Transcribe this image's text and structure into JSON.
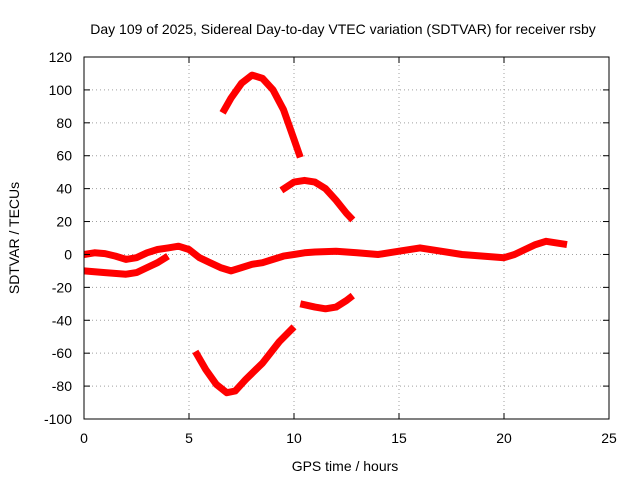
{
  "chart_data": {
    "type": "line",
    "title": "Day 109 of 2025, Sidereal Day-to-day VTEC variation (SDTVAR) for receiver rsby",
    "xlabel": "GPS time / hours",
    "ylabel": "SDTVAR / TECUs",
    "xlim": [
      0,
      25
    ],
    "ylim": [
      -100,
      120
    ],
    "xticks": [
      0,
      5,
      10,
      15,
      20,
      25
    ],
    "yticks": [
      -100,
      -80,
      -60,
      -40,
      -20,
      0,
      20,
      40,
      60,
      80,
      100,
      120
    ],
    "grid": true,
    "legend": "none",
    "color": "#ff0000",
    "series": [
      {
        "name": "main trace",
        "points": [
          [
            0,
            0
          ],
          [
            0.5,
            1
          ],
          [
            1,
            0.5
          ],
          [
            1.5,
            -1
          ],
          [
            2,
            -3
          ],
          [
            2.5,
            -2
          ],
          [
            3,
            1
          ],
          [
            3.5,
            3
          ],
          [
            4,
            4
          ],
          [
            4.5,
            5
          ],
          [
            5,
            3
          ],
          [
            5.5,
            -2
          ],
          [
            6,
            -5
          ],
          [
            6.5,
            -8
          ],
          [
            7,
            -10
          ],
          [
            7.5,
            -8
          ],
          [
            8,
            -6
          ],
          [
            8.5,
            -5
          ],
          [
            9,
            -3
          ],
          [
            9.5,
            -1
          ],
          [
            10,
            0
          ],
          [
            10.5,
            1
          ],
          [
            11,
            1.5
          ],
          [
            12,
            2
          ],
          [
            13,
            1
          ],
          [
            14,
            0
          ],
          [
            15,
            2
          ],
          [
            16,
            4
          ],
          [
            17,
            2
          ],
          [
            18,
            0
          ],
          [
            19,
            -1
          ],
          [
            20,
            -2
          ],
          [
            20.5,
            0
          ],
          [
            21,
            3
          ],
          [
            21.5,
            6
          ],
          [
            22,
            8
          ],
          [
            22.5,
            7
          ],
          [
            23,
            6
          ]
        ]
      },
      {
        "name": "early negative trace",
        "points": [
          [
            0,
            -10
          ],
          [
            1,
            -11
          ],
          [
            2,
            -12
          ],
          [
            2.5,
            -11
          ],
          [
            3,
            -8
          ],
          [
            3.5,
            -5
          ],
          [
            4,
            -1
          ]
        ]
      },
      {
        "name": "high arc",
        "points": [
          [
            6.6,
            86
          ],
          [
            7,
            95
          ],
          [
            7.5,
            104
          ],
          [
            8,
            109
          ],
          [
            8.5,
            107
          ],
          [
            9,
            100
          ],
          [
            9.5,
            88
          ],
          [
            10,
            70
          ],
          [
            10.3,
            59
          ]
        ]
      },
      {
        "name": "mid arc",
        "points": [
          [
            9.4,
            39
          ],
          [
            10,
            44
          ],
          [
            10.5,
            45
          ],
          [
            11,
            44
          ],
          [
            11.5,
            40
          ],
          [
            12,
            33
          ],
          [
            12.5,
            25
          ],
          [
            12.8,
            21
          ]
        ]
      },
      {
        "name": "low arc",
        "points": [
          [
            5.3,
            -59
          ],
          [
            5.8,
            -70
          ],
          [
            6.3,
            -79
          ],
          [
            6.8,
            -84
          ],
          [
            7.2,
            -83
          ],
          [
            7.7,
            -76
          ],
          [
            8.5,
            -66
          ],
          [
            9.3,
            -53
          ],
          [
            10,
            -44
          ]
        ]
      },
      {
        "name": "small negative arc",
        "points": [
          [
            10.3,
            -30
          ],
          [
            11,
            -32
          ],
          [
            11.5,
            -33
          ],
          [
            12,
            -32
          ],
          [
            12.5,
            -28
          ],
          [
            12.8,
            -25
          ]
        ]
      }
    ]
  }
}
